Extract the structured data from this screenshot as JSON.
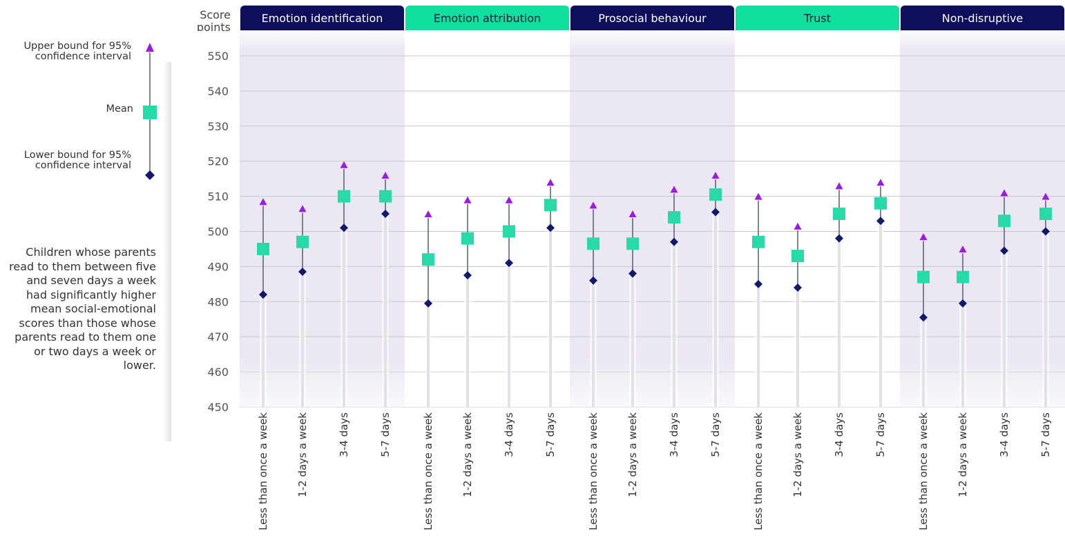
{
  "legend": {
    "upper_label": "Upper bound for 95% confidence interval",
    "mean_label": "Mean",
    "lower_label": "Lower bound for 95% confidence interval",
    "note": "Children whose parents read to them between five and seven days a week had significantly higher mean social-emotional scores than those whose parents read to them one or two days a week or lower."
  },
  "colors": {
    "header_dark": "#0f0e5c",
    "header_green": "#0fe0a0",
    "shade": "#ece8f3",
    "upper_marker": "#9b1be0",
    "mean_marker": "#26dba7",
    "lower_marker": "#10196b",
    "ci_line": "#555e6e",
    "grid": "#c8c8c8"
  },
  "chart_data": {
    "type": "scatter",
    "ylabel": "Score points",
    "ylim": [
      450,
      555
    ],
    "yticks": [
      450,
      460,
      470,
      480,
      490,
      500,
      510,
      520,
      530,
      540,
      550
    ],
    "categories": [
      "Less than once a week",
      "1-2 days a week",
      "3-4 days",
      "5-7 days"
    ],
    "groups": [
      {
        "name": "Emotion identification",
        "header_color": "dark",
        "shaded": true,
        "mean": [
          495,
          497,
          510,
          510
        ],
        "lower": [
          482,
          488.5,
          501,
          505
        ],
        "upper": [
          508.5,
          506.5,
          519,
          516
        ]
      },
      {
        "name": "Emotion attribution",
        "header_color": "green",
        "shaded": false,
        "mean": [
          492,
          498,
          500,
          507.5
        ],
        "lower": [
          479.5,
          487.5,
          491,
          501
        ],
        "upper": [
          505,
          509,
          509,
          514
        ]
      },
      {
        "name": "Prosocial behaviour",
        "header_color": "dark",
        "shaded": true,
        "mean": [
          496.5,
          496.5,
          504,
          510.5
        ],
        "lower": [
          486,
          488,
          497,
          505.5
        ],
        "upper": [
          507.5,
          505,
          512,
          516
        ]
      },
      {
        "name": "Trust",
        "header_color": "green",
        "shaded": false,
        "mean": [
          497,
          493,
          505,
          508
        ],
        "lower": [
          485,
          484,
          498,
          503
        ],
        "upper": [
          510,
          501.5,
          513,
          514
        ]
      },
      {
        "name": "Non-disruptive",
        "header_color": "dark",
        "shaded": true,
        "mean": [
          487,
          487,
          503,
          505
        ],
        "lower": [
          475.5,
          479.5,
          494.5,
          500
        ],
        "upper": [
          498.5,
          495,
          511,
          510
        ]
      }
    ]
  }
}
